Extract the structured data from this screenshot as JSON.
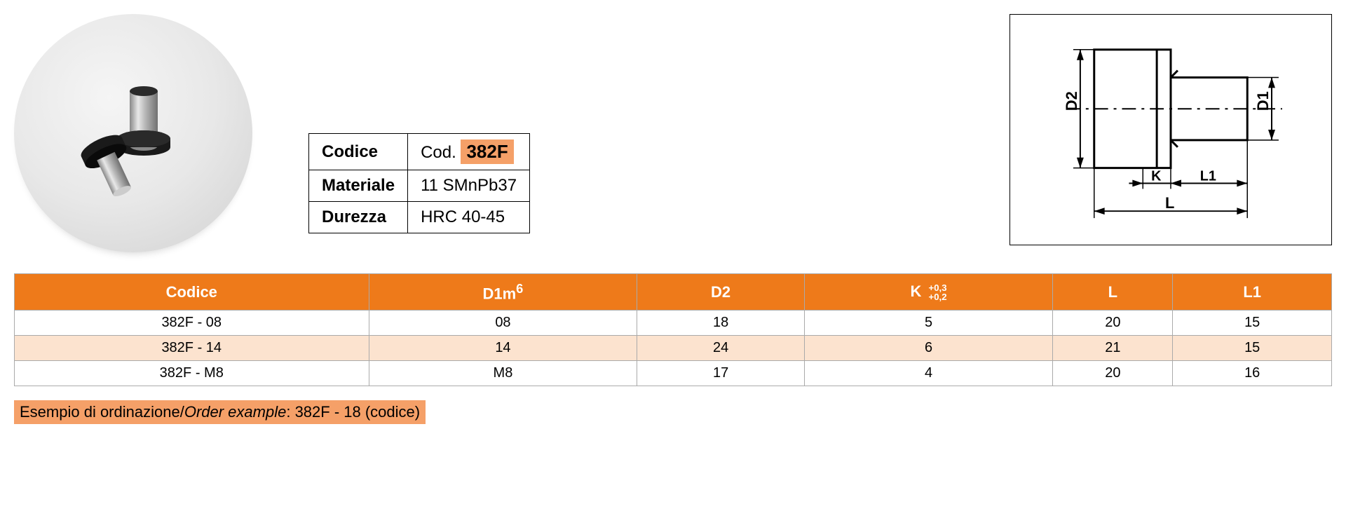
{
  "product_image": {
    "circle_bg_start": "#f5f5f5",
    "circle_bg_end": "#d0d0d0",
    "pin_cap_color": "#1a1a1a",
    "pin_body_color": "#b8b8b8",
    "pin_body_highlight": "#e8e8e8"
  },
  "spec_table": {
    "border_color": "#000000",
    "label_fontsize": 24,
    "rows": [
      {
        "label": "Codice",
        "value_prefix": "Cod. ",
        "value_code": "382F",
        "code_highlight_bg": "#f5a068"
      },
      {
        "label": "Materiale",
        "value": "11 SMnPb37"
      },
      {
        "label": "Durezza",
        "value": "HRC 40-45"
      }
    ]
  },
  "diagram": {
    "labels": {
      "D2": "D2",
      "D1": "D1",
      "K": "K",
      "L1": "L1",
      "L": "L"
    },
    "border_color": "#000000",
    "line_color": "#000000",
    "line_width": 3
  },
  "data_table": {
    "header_bg": "#ee7a1a",
    "header_text_color": "#ffffff",
    "alt_row_bg": "#fce3cf",
    "border_color": "#aaaaaa",
    "columns": [
      {
        "label": "Codice"
      },
      {
        "label_main": "D1m",
        "label_sup": "6"
      },
      {
        "label": "D2"
      },
      {
        "label_main": "K ",
        "tol_top": "+0,3",
        "tol_bot": "+0,2"
      },
      {
        "label": "L"
      },
      {
        "label": "L1"
      }
    ],
    "rows": [
      {
        "cells": [
          "382F - 08",
          "08",
          "18",
          "5",
          "20",
          "15"
        ],
        "alt": false
      },
      {
        "cells": [
          "382F - 14",
          "14",
          "24",
          "6",
          "21",
          "15"
        ],
        "alt": true
      },
      {
        "cells": [
          "382F - M8",
          "M8",
          "17",
          "4",
          "20",
          "16"
        ],
        "alt": false
      }
    ]
  },
  "order_example": {
    "text_it": "Esempio di ordinazione",
    "text_en": "Order example",
    "separator": "/",
    "example": ": 382F - 18 (codice)",
    "bg": "#f5a068"
  }
}
